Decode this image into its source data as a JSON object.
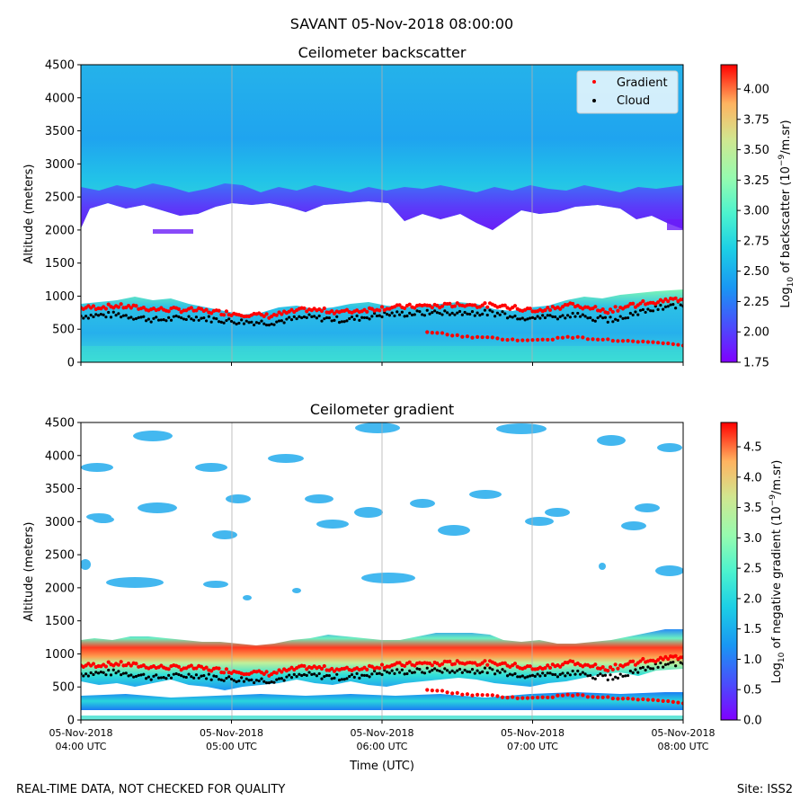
{
  "figure": {
    "suptitle": "SAVANT 05-Nov-2018 08:00:00",
    "footer_left": "REAL-TIME DATA, NOT CHECKED FOR QUALITY",
    "footer_right": "Site: ISS2"
  },
  "chart_data": [
    {
      "type": "heatmap",
      "title": "Ceilometer backscatter",
      "xlabel": "",
      "ylabel": "Altitude (meters)",
      "xlim": [
        "2018-11-05T04:00Z",
        "2018-11-05T08:00Z"
      ],
      "ylim": [
        0,
        4500
      ],
      "y_ticks": [
        "0",
        "500",
        "1000",
        "1500",
        "2000",
        "2500",
        "3000",
        "3500",
        "4000",
        "4500"
      ],
      "x_ticks": [],
      "colorbar": {
        "label": "Log10 of backscatter (10^-9/m.sr)",
        "label_parts": [
          "Log",
          "10",
          " of backscatter (10",
          "−9",
          "/m.sr)"
        ],
        "range": [
          1.75,
          4.2
        ],
        "ticks": [
          "1.75",
          "2.00",
          "2.25",
          "2.50",
          "2.75",
          "3.00",
          "3.25",
          "3.50",
          "3.75",
          "4.00"
        ],
        "tick_values": [
          1.75,
          2.0,
          2.25,
          2.5,
          2.75,
          3.0,
          3.25,
          3.5,
          3.75,
          4.0
        ]
      },
      "legend": {
        "position": "top-right",
        "entries": [
          {
            "label": "Gradient",
            "color": "#ff0000"
          },
          {
            "label": "Cloud",
            "color": "#000000"
          }
        ]
      },
      "approx_fields": {
        "upper_signal_altitude_range_m": [
          2000,
          4500
        ],
        "no_signal_gap_m": [
          1300,
          2400
        ],
        "boundary_layer_m": [
          0,
          1100
        ]
      }
    },
    {
      "type": "heatmap",
      "title": "Ceilometer gradient",
      "xlabel": "Time (UTC)",
      "ylabel": "Altitude (meters)",
      "ylim": [
        0,
        4500
      ],
      "y_ticks": [
        "0",
        "500",
        "1000",
        "1500",
        "2000",
        "2500",
        "3000",
        "3500",
        "4000",
        "4500"
      ],
      "x_ticks": [
        {
          "line1": "05-Nov-2018",
          "line2": "04:00 UTC"
        },
        {
          "line1": "05-Nov-2018",
          "line2": "05:00 UTC"
        },
        {
          "line1": "05-Nov-2018",
          "line2": "06:00 UTC"
        },
        {
          "line1": "05-Nov-2018",
          "line2": "07:00 UTC"
        },
        {
          "line1": "05-Nov-2018",
          "line2": "08:00 UTC"
        }
      ],
      "colorbar": {
        "label": "Log10 of negative gradient (10^-9/m.sr)",
        "label_parts": [
          "Log",
          "10",
          " of negative gradient (10",
          "−9",
          "/m.sr)"
        ],
        "range": [
          0.0,
          4.9
        ],
        "ticks": [
          "0.0",
          "0.5",
          "1.0",
          "1.5",
          "2.0",
          "2.5",
          "3.0",
          "3.5",
          "4.0",
          "4.5"
        ],
        "tick_values": [
          0.0,
          0.5,
          1.0,
          1.5,
          2.0,
          2.5,
          3.0,
          3.5,
          4.0,
          4.5
        ]
      }
    }
  ],
  "series": {
    "time_hours": [
      0.0,
      0.25,
      0.5,
      0.75,
      1.0,
      1.25,
      1.5,
      1.75,
      2.0,
      2.25,
      2.5,
      2.75,
      3.0,
      3.25,
      3.5,
      3.75,
      4.0
    ],
    "gradient_altitude_m": [
      820,
      850,
      800,
      790,
      740,
      700,
      800,
      760,
      820,
      850,
      860,
      870,
      780,
      860,
      780,
      900,
      960
    ],
    "cloud_altitude_m": [
      700,
      720,
      640,
      680,
      620,
      600,
      680,
      640,
      720,
      740,
      760,
      740,
      660,
      720,
      640,
      780,
      880
    ],
    "lower_gradient_time_hours": [
      2.3,
      2.5,
      2.75,
      3.0,
      3.25,
      3.5,
      3.75,
      4.0
    ],
    "lower_gradient_altitude_m": [
      460,
      400,
      360,
      330,
      380,
      340,
      300,
      260
    ]
  }
}
